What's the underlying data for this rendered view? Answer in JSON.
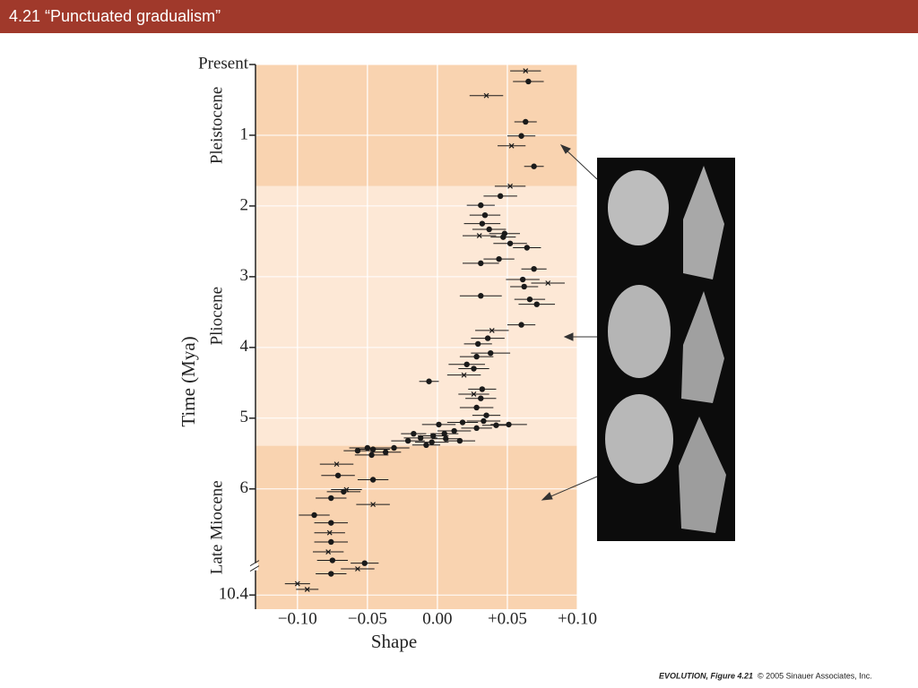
{
  "header": {
    "title": "4.21  “Punctuated gradualism”"
  },
  "chart_data": {
    "type": "scatter",
    "xlabel": "Shape",
    "ylabel": "Time (Mya)",
    "xlim": [
      -0.13,
      0.1
    ],
    "xticks": [
      {
        "value": -0.1,
        "label": "−0.10"
      },
      {
        "value": -0.05,
        "label": "−0.05"
      },
      {
        "value": 0,
        "label": "0.00"
      },
      {
        "value": 0.05,
        "label": "+0.05"
      },
      {
        "value": 0.1,
        "label": "+0.10"
      }
    ],
    "ylim": [
      0,
      10.6
    ],
    "yinverted": true,
    "ybreak": [
      7.1,
      10
    ],
    "yticks": [
      {
        "value": 0,
        "label": "Present"
      },
      1,
      2,
      3,
      4,
      5,
      6,
      10.4
    ],
    "grid": true,
    "epochs": [
      {
        "name": "Pleistocene",
        "from": 0,
        "to": 1.72,
        "color": "#f9d3b0"
      },
      {
        "name": "Pliocene",
        "from": 1.72,
        "to": 5.39,
        "color": "#fde8d6"
      },
      {
        "name": "Late Miocene",
        "from": 5.39,
        "to": 10.6,
        "color": "#f9d3b0"
      }
    ],
    "series": [
      {
        "marker": "circle",
        "color": "#1a1a1a",
        "x": [
          0.065,
          0.063,
          0.06,
          0.069,
          0.045,
          0.031,
          0.034,
          0.032,
          0.037,
          0.048,
          0.047,
          0.052,
          0.064,
          0.044,
          0.031,
          0.069,
          0.061,
          0.062,
          0.066,
          0.071,
          0.031,
          0.06,
          0.036,
          0.029,
          0.038,
          0.028,
          0.021,
          0.026,
          -0.006,
          0.032,
          0.031,
          0.028,
          0.035,
          0.033,
          0.018,
          0.001,
          0.051,
          0.042,
          0.028,
          0.012,
          0.005,
          -0.003,
          -0.017,
          -0.012,
          0.006,
          0.016,
          -0.004,
          -0.008,
          -0.021,
          -0.031,
          -0.046,
          -0.05,
          -0.057,
          -0.047,
          -0.037,
          -0.071,
          -0.046,
          -0.067,
          -0.076,
          -0.088,
          -0.076,
          -0.076,
          -0.075,
          -0.052,
          -0.076
        ],
        "y": [
          0.24,
          0.81,
          1.01,
          1.44,
          1.86,
          1.99,
          2.13,
          2.25,
          2.33,
          2.39,
          2.44,
          2.53,
          2.59,
          2.75,
          2.81,
          2.89,
          3.04,
          3.14,
          3.32,
          3.39,
          3.27,
          3.68,
          3.87,
          3.95,
          4.08,
          4.13,
          4.24,
          4.3,
          4.48,
          4.59,
          4.72,
          4.85,
          4.96,
          5.04,
          5.06,
          5.09,
          5.09,
          5.1,
          5.14,
          5.18,
          5.22,
          5.25,
          5.22,
          5.28,
          5.29,
          5.32,
          5.34,
          5.38,
          5.32,
          5.42,
          5.44,
          5.42,
          5.46,
          5.52,
          5.48,
          5.81,
          5.87,
          6.04,
          6.13,
          6.37,
          6.48,
          6.75,
          7.01,
          7.05,
          10.1
        ],
        "xerr": [
          0.011,
          0.008,
          0.01,
          0.007,
          0.012,
          0.01,
          0.011,
          0.013,
          0.012,
          0.011,
          0.009,
          0.012,
          0.01,
          0.011,
          0.013,
          0.009,
          0.012,
          0.01,
          0.011,
          0.013,
          0.015,
          0.01,
          0.012,
          0.01,
          0.014,
          0.012,
          0.013,
          0.011,
          0.007,
          0.01,
          0.011,
          0.012,
          0.01,
          0.012,
          0.011,
          0.012,
          0.013,
          0.01,
          0.011,
          0.012,
          0.01,
          0.011,
          0.009,
          0.012,
          0.01,
          0.011,
          0.012,
          0.01,
          0.012,
          0.011,
          0.012,
          0.013,
          0.01,
          0.012,
          0.011,
          0.012,
          0.011,
          0.012,
          0.011,
          0.011,
          0.012,
          0.012,
          0.011,
          0.01,
          0.011
        ]
      },
      {
        "marker": "cross",
        "color": "#1a1a1a",
        "x": [
          0.063,
          0.035,
          0.053,
          0.052,
          0.03,
          0.039,
          0.026,
          0.019,
          0.079,
          -0.072,
          -0.065,
          -0.046,
          -0.077,
          -0.078,
          -0.057,
          -0.1,
          -0.093
        ],
        "y": [
          0.09,
          0.44,
          1.15,
          1.72,
          2.42,
          3.76,
          4.66,
          4.39,
          3.09,
          5.65,
          6.01,
          6.22,
          6.62,
          6.89,
          10.03,
          10.24,
          10.32
        ],
        "xerr": [
          0.011,
          0.012,
          0.01,
          0.011,
          0.012,
          0.012,
          0.011,
          0.012,
          0.012,
          0.012,
          0.011,
          0.012,
          0.011,
          0.011,
          0.012,
          0.009,
          0.008
        ]
      }
    ]
  },
  "footer": {
    "figure": "EVOLUTION, Figure 4.21",
    "copyright": "© 2005 Sinauer Associates, Inc."
  }
}
